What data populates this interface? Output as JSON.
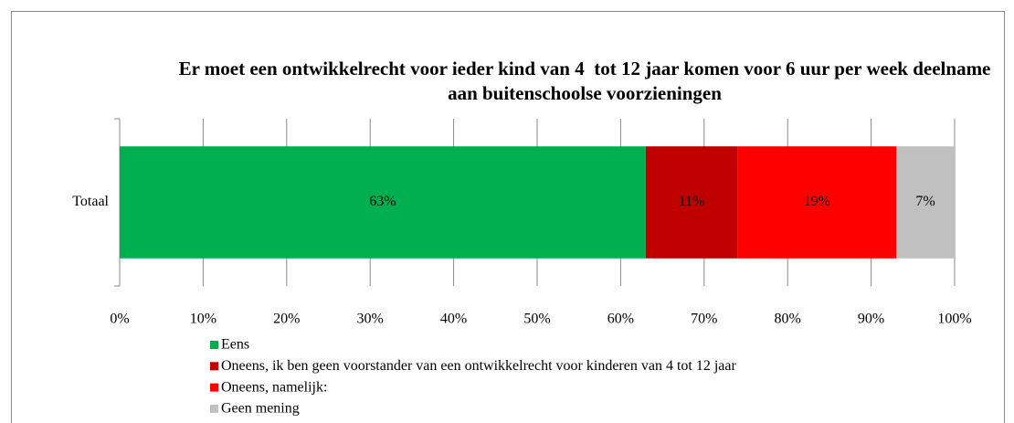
{
  "chart_data": {
    "type": "stacked_barh",
    "title": "Er moet een ontwikkelrecht voor ieder kind van 4  tot 12 jaar komen voor 6 uur per week deelname aan buitenschoolse voorzieningen",
    "categories": [
      "Totaal"
    ],
    "series": [
      {
        "name": "Eens",
        "color": "#00b050",
        "values": [
          63
        ],
        "value_labels": [
          "63%"
        ]
      },
      {
        "name": "Oneens, ik ben geen voorstander van een ontwikkelrecht voor kinderen van 4 tot 12 jaar",
        "color": "#c00000",
        "values": [
          11
        ],
        "value_labels": [
          "11%"
        ]
      },
      {
        "name": "Oneens, namelijk:",
        "color": "#ff0000",
        "values": [
          19
        ],
        "value_labels": [
          "19%"
        ]
      },
      {
        "name": "Geen mening",
        "color": "#c0c0c0",
        "values": [
          7
        ],
        "value_labels": [
          "7%"
        ]
      }
    ],
    "xlim": [
      0,
      100
    ],
    "xticks": [
      {
        "value": 0,
        "label": "0%"
      },
      {
        "value": 10,
        "label": "10%"
      },
      {
        "value": 20,
        "label": "20%"
      },
      {
        "value": 30,
        "label": "30%"
      },
      {
        "value": 40,
        "label": "40%"
      },
      {
        "value": 50,
        "label": "50%"
      },
      {
        "value": 60,
        "label": "60%"
      },
      {
        "value": 70,
        "label": "70%"
      },
      {
        "value": 80,
        "label": "80%"
      },
      {
        "value": 90,
        "label": "90%"
      },
      {
        "value": 100,
        "label": "100%"
      }
    ],
    "grid": true,
    "legend": "bottom"
  }
}
